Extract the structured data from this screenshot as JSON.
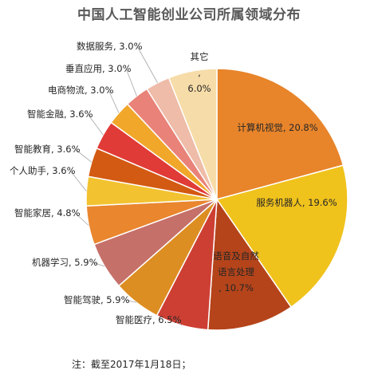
{
  "chart_data": {
    "type": "pie",
    "title": "中国人工智能创业公司所属领域分布",
    "slices": [
      {
        "label": "计算机视觉",
        "value": 20.8,
        "display": "20.8%",
        "color": "#e8842a"
      },
      {
        "label": "服务机器人",
        "value": 19.6,
        "display": "19.6%",
        "color": "#f0c21c"
      },
      {
        "label": "语音及自然语言处理",
        "value": 10.7,
        "display": "10.7%",
        "color": "#b5441a"
      },
      {
        "label": "智能医疗",
        "value": 6.5,
        "display": "6.5%",
        "color": "#cd3f33"
      },
      {
        "label": "智能驾驶",
        "value": 5.9,
        "display": "5.9%",
        "color": "#dd8e22"
      },
      {
        "label": "机器学习",
        "value": 5.9,
        "display": "5.9%",
        "color": "#c6706a"
      },
      {
        "label": "智能家居",
        "value": 4.8,
        "display": "4.8%",
        "color": "#e9862e"
      },
      {
        "label": "个人助手",
        "value": 3.6,
        "display": "3.6%",
        "color": "#f2c230"
      },
      {
        "label": "智能教育",
        "value": 3.6,
        "display": "3.6%",
        "color": "#d35a12"
      },
      {
        "label": "智能金融",
        "value": 3.6,
        "display": "3.6%",
        "color": "#e03b37"
      },
      {
        "label": "电商物流",
        "value": 3.0,
        "display": "3.0%",
        "color": "#f0a72a"
      },
      {
        "label": "垂直应用",
        "value": 3.0,
        "display": "3.0%",
        "color": "#e98278"
      },
      {
        "label": "数据服务",
        "value": 3.0,
        "display": "3.0%",
        "color": "#eebca8"
      },
      {
        "label": "其它",
        "value": 6.0,
        "display": "6.0%",
        "color": "#f6dca8"
      }
    ]
  },
  "footnote": "注：截至2017年1月18日；"
}
